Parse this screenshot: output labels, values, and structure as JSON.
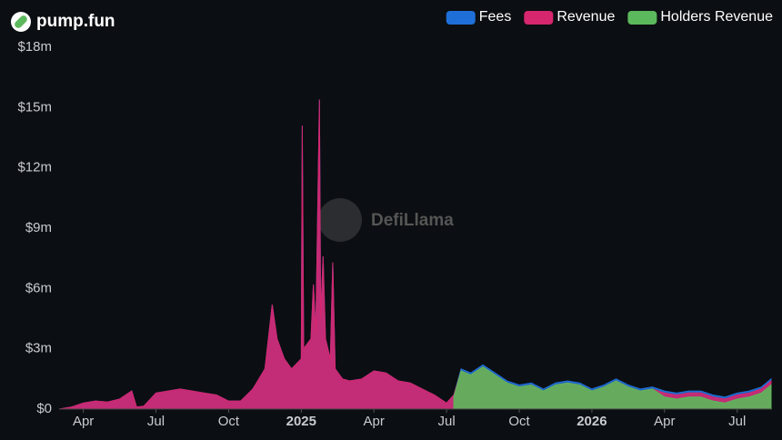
{
  "chart_data": {
    "type": "area",
    "title": "pump.fun",
    "watermark": "DefiLlama",
    "x": [
      2.0,
      2.5,
      3.0,
      3.5,
      4.0,
      4.5,
      5.0,
      5.2,
      5.5,
      6.0,
      6.5,
      7.0,
      7.5,
      8.0,
      8.5,
      9.0,
      9.5,
      10.0,
      10.5,
      10.8,
      11.0,
      11.3,
      11.6,
      12.0,
      12.04,
      12.1,
      12.4,
      12.5,
      12.6,
      12.75,
      12.8,
      12.9,
      13.0,
      13.2,
      13.3,
      13.4,
      13.7,
      14.0,
      14.5,
      15.0,
      15.5,
      16.0,
      16.5,
      17.0,
      17.5,
      18.0,
      18.3,
      18.6,
      19.0,
      19.5,
      20.0,
      20.5,
      21.0,
      21.5,
      22.0,
      22.5,
      23.0,
      23.5,
      24.0,
      24.5,
      25.0,
      25.5,
      26.0,
      26.5,
      27.0,
      27.5,
      28.0,
      28.5,
      29.0,
      29.5,
      30.0,
      30.5,
      31.0,
      31.4
    ],
    "series": [
      {
        "name": "Fees",
        "color": "#1f6fd8",
        "values": [
          0.0,
          0.1,
          0.3,
          0.4,
          0.35,
          0.5,
          0.9,
          0.1,
          0.15,
          0.8,
          0.9,
          1.0,
          0.9,
          0.8,
          0.7,
          0.4,
          0.4,
          1.0,
          2.0,
          5.2,
          3.5,
          2.5,
          2.0,
          2.5,
          14.1,
          3.0,
          3.5,
          6.2,
          3.8,
          15.4,
          4.5,
          7.6,
          3.5,
          2.5,
          7.3,
          2.0,
          1.5,
          1.4,
          1.5,
          1.9,
          1.8,
          1.4,
          1.3,
          1.0,
          0.7,
          0.3,
          0.7,
          2.0,
          1.8,
          2.2,
          1.8,
          1.4,
          1.2,
          1.3,
          1.0,
          1.3,
          1.4,
          1.3,
          1.0,
          1.2,
          1.5,
          1.2,
          1.0,
          1.1,
          0.9,
          0.8,
          0.9,
          0.9,
          0.7,
          0.6,
          0.8,
          0.9,
          1.1,
          1.5
        ]
      },
      {
        "name": "Revenue",
        "color": "#d6266e",
        "values": [
          0.0,
          0.1,
          0.3,
          0.4,
          0.35,
          0.5,
          0.9,
          0.1,
          0.15,
          0.8,
          0.9,
          1.0,
          0.9,
          0.8,
          0.7,
          0.4,
          0.4,
          1.0,
          2.0,
          5.2,
          3.5,
          2.5,
          2.0,
          2.5,
          14.1,
          3.0,
          3.5,
          6.2,
          3.8,
          15.4,
          4.5,
          7.6,
          3.5,
          2.5,
          7.3,
          2.0,
          1.5,
          1.4,
          1.5,
          1.9,
          1.8,
          1.4,
          1.3,
          1.0,
          0.7,
          0.3,
          0.7,
          1.9,
          1.7,
          2.1,
          1.7,
          1.3,
          1.1,
          1.2,
          0.9,
          1.2,
          1.3,
          1.2,
          0.9,
          1.1,
          1.4,
          1.1,
          0.9,
          1.0,
          0.8,
          0.7,
          0.8,
          0.8,
          0.6,
          0.5,
          0.7,
          0.8,
          1.0,
          1.4
        ]
      },
      {
        "name": "Holders Revenue",
        "color": "#5cb85c",
        "values": [
          null,
          null,
          null,
          null,
          null,
          null,
          null,
          null,
          null,
          null,
          null,
          null,
          null,
          null,
          null,
          null,
          null,
          null,
          null,
          null,
          null,
          null,
          null,
          null,
          null,
          null,
          null,
          null,
          null,
          null,
          null,
          null,
          null,
          null,
          null,
          null,
          null,
          null,
          null,
          null,
          null,
          null,
          null,
          null,
          null,
          null,
          0.6,
          1.9,
          1.7,
          2.1,
          1.7,
          1.3,
          1.1,
          1.2,
          0.9,
          1.2,
          1.3,
          1.2,
          0.9,
          1.1,
          1.4,
          1.1,
          0.9,
          1.0,
          0.6,
          0.5,
          0.6,
          0.6,
          0.4,
          0.3,
          0.5,
          0.6,
          0.8,
          1.2
        ]
      }
    ],
    "xlim": [
      2.0,
      31.4
    ],
    "xticks": [
      {
        "value": 3,
        "label": "Apr"
      },
      {
        "value": 6,
        "label": "Jul"
      },
      {
        "value": 9,
        "label": "Oct"
      },
      {
        "value": 12,
        "label": "2025"
      },
      {
        "value": 15,
        "label": "Apr"
      },
      {
        "value": 18,
        "label": "Jul"
      },
      {
        "value": 21,
        "label": "Oct"
      },
      {
        "value": 24,
        "label": "2026"
      },
      {
        "value": 27,
        "label": "Apr"
      },
      {
        "value": 30,
        "label": "Jul"
      }
    ],
    "ylim": [
      0,
      18
    ],
    "yticks": [
      {
        "value": 0,
        "label": "$0"
      },
      {
        "value": 3,
        "label": "$3m"
      },
      {
        "value": 6,
        "label": "$6m"
      },
      {
        "value": 9,
        "label": "$9m"
      },
      {
        "value": 12,
        "label": "$12m"
      },
      {
        "value": 15,
        "label": "$15m"
      },
      {
        "value": 18,
        "label": "$18m"
      }
    ],
    "legend": "top-right"
  }
}
